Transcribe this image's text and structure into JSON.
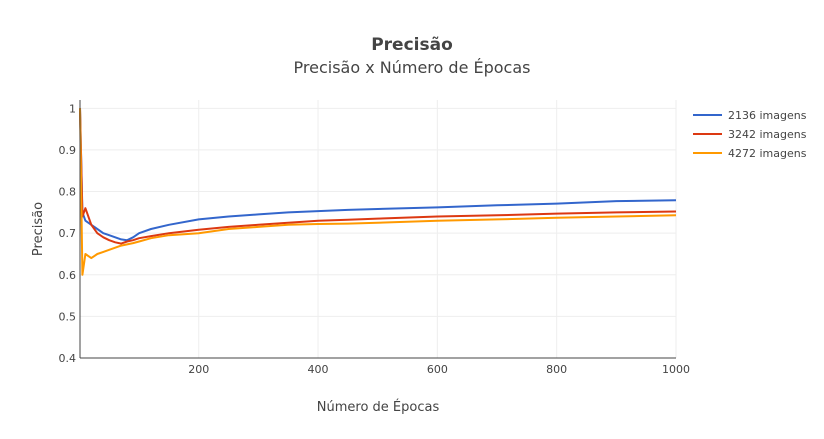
{
  "chart_data": {
    "type": "line",
    "title": "Precisão",
    "subtitle": "Precisão x Número de Épocas",
    "xlabel": "Número de Épocas",
    "ylabel": "Precisão",
    "xlim": [
      1,
      1000
    ],
    "ylim": [
      0.4,
      1.02
    ],
    "xticks": [
      200,
      400,
      600,
      800,
      1000
    ],
    "yticks": [
      0.4,
      0.5,
      0.6,
      0.7,
      0.8,
      0.9,
      1
    ],
    "grid": true,
    "legend_position": "top-right",
    "series": [
      {
        "name": "2136 imagens",
        "color": "#3366cc",
        "x": [
          1,
          5,
          10,
          20,
          30,
          40,
          50,
          60,
          70,
          80,
          90,
          100,
          120,
          150,
          200,
          250,
          300,
          350,
          400,
          450,
          500,
          600,
          700,
          800,
          900,
          1000
        ],
        "y": [
          1.0,
          0.75,
          0.73,
          0.72,
          0.71,
          0.7,
          0.695,
          0.69,
          0.685,
          0.683,
          0.69,
          0.7,
          0.71,
          0.72,
          0.733,
          0.74,
          0.745,
          0.75,
          0.753,
          0.756,
          0.758,
          0.762,
          0.767,
          0.771,
          0.777,
          0.779
        ]
      },
      {
        "name": "3242 imagens",
        "color": "#dc3912",
        "x": [
          1,
          5,
          10,
          20,
          30,
          40,
          50,
          60,
          70,
          80,
          90,
          100,
          120,
          150,
          200,
          250,
          300,
          350,
          400,
          450,
          500,
          600,
          700,
          800,
          900,
          1000
        ],
        "y": [
          1.0,
          0.74,
          0.76,
          0.72,
          0.7,
          0.69,
          0.683,
          0.678,
          0.675,
          0.68,
          0.683,
          0.688,
          0.693,
          0.7,
          0.708,
          0.715,
          0.72,
          0.725,
          0.73,
          0.732,
          0.735,
          0.74,
          0.743,
          0.747,
          0.75,
          0.752
        ]
      },
      {
        "name": "4272 imagens",
        "color": "#ff9900",
        "x": [
          1,
          5,
          10,
          20,
          30,
          40,
          50,
          60,
          70,
          80,
          90,
          100,
          120,
          150,
          200,
          250,
          300,
          350,
          400,
          450,
          500,
          600,
          700,
          800,
          900,
          1000
        ],
        "y": [
          1.0,
          0.6,
          0.65,
          0.64,
          0.65,
          0.655,
          0.66,
          0.665,
          0.67,
          0.673,
          0.676,
          0.68,
          0.688,
          0.695,
          0.7,
          0.71,
          0.715,
          0.72,
          0.722,
          0.723,
          0.725,
          0.73,
          0.733,
          0.737,
          0.74,
          0.743
        ]
      }
    ]
  }
}
